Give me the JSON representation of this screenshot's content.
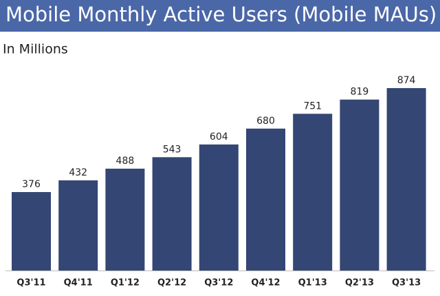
{
  "chart_data": {
    "type": "bar",
    "title": "Mobile Monthly Active Users (Mobile MAUs)",
    "subtitle": "In Millions",
    "categories": [
      "Q3'11",
      "Q4'11",
      "Q1'12",
      "Q2'12",
      "Q3'12",
      "Q4'12",
      "Q1'13",
      "Q2'13",
      "Q3'13"
    ],
    "values": [
      376,
      432,
      488,
      543,
      604,
      680,
      751,
      819,
      874
    ],
    "color": "#344673"
  }
}
